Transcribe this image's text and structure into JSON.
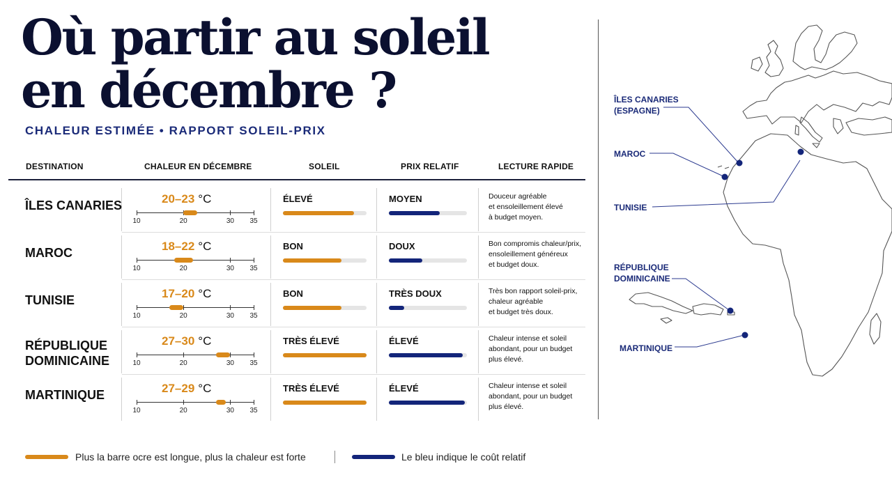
{
  "title_line1": "Où partir au soleil",
  "title_line2": "en décembre ?",
  "subtitle": "CHALEUR ESTIMÉE • RAPPORT SOLEIL-PRIX",
  "columns": {
    "destination": "DESTINATION",
    "heat": "CHALEUR EN DÉCEMBRE",
    "sun": "SOLEIL",
    "price": "PRIX RELATIF",
    "quick": "LECTURE RAPIDE"
  },
  "temp_unit": "°C",
  "scale_ticks": [
    "10",
    "20",
    "30",
    "35"
  ],
  "colors": {
    "ochre": "#d9891a",
    "navy": "#13257a",
    "ink": "#0b1030"
  },
  "rows": [
    {
      "destination": "ÎLES CANARIES",
      "temp_range": "20–23",
      "temp_min": 20,
      "temp_max": 23,
      "sun_label": "ÉLEVÉ",
      "sun_level": 0.85,
      "price_label": "MOYEN",
      "price_level": 0.65,
      "note_lines": [
        "Douceur agréable",
        "et ensoleillement élevé",
        "à budget moyen."
      ]
    },
    {
      "destination": "MAROC",
      "temp_range": "18–22",
      "temp_min": 18,
      "temp_max": 22,
      "sun_label": "BON",
      "sun_level": 0.7,
      "price_label": "DOUX",
      "price_level": 0.43,
      "note_lines": [
        "Bon compromis chaleur/prix,",
        "ensoleillement généreux",
        "et budget doux."
      ]
    },
    {
      "destination": "TUNISIE",
      "temp_range": "17–20",
      "temp_min": 17,
      "temp_max": 20,
      "sun_label": "BON",
      "sun_level": 0.7,
      "price_label": "TRÈS DOUX",
      "price_level": 0.2,
      "note_lines": [
        "Très bon rapport soleil-prix,",
        "chaleur agréable",
        "et budget très doux."
      ]
    },
    {
      "destination": "RÉPUBLIQUE DOMINICAINE",
      "destination_lines": [
        "RÉPUBLIQUE",
        "DOMINICAINE"
      ],
      "temp_range": "27–30",
      "temp_min": 27,
      "temp_max": 30,
      "sun_label": "TRÈS ÉLEVÉ",
      "sun_level": 1.0,
      "price_label": "ÉLEVÉ",
      "price_level": 0.95,
      "note_lines": [
        "Chaleur intense et soleil",
        "abondant, pour un budget",
        "plus élevé."
      ]
    },
    {
      "destination": "MARTINIQUE",
      "temp_range": "27–29",
      "temp_min": 27,
      "temp_max": 29,
      "sun_label": "TRÈS ÉLEVÉ",
      "sun_level": 1.0,
      "price_label": "ÉLEVÉ",
      "price_level": 0.97,
      "note_lines": [
        "Chaleur intense et soleil",
        "abondant, pour un budget",
        "plus élevé."
      ]
    }
  ],
  "map": {
    "labels": {
      "canaries": [
        "ÎLES CANARIES",
        "(ESPAGNE)"
      ],
      "maroc": [
        "MAROC"
      ],
      "tunisie": [
        "TUNISIE"
      ],
      "dominicaine": [
        "RÉPUBLIQUE",
        "DOMINICAINE"
      ],
      "martinique": [
        "MARTINIQUE"
      ]
    }
  },
  "legend": {
    "heat_text": "Plus la barre ocre est longue, plus la chaleur est forte",
    "price_text": "Le bleu indique le coût relatif"
  }
}
